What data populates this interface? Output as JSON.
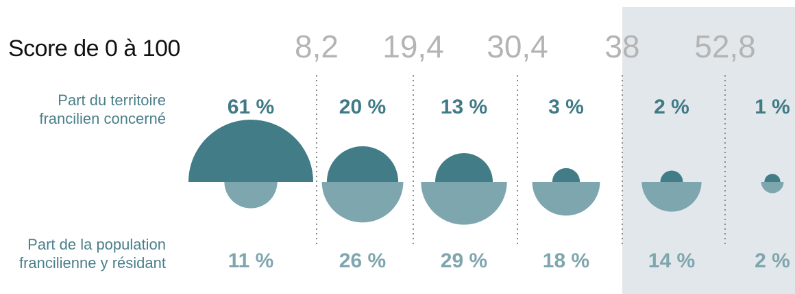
{
  "chart_data": {
    "type": "semicircle",
    "title": "Score de 0 à 100",
    "thresholds": [
      "8,2",
      "19,4",
      "30,4",
      "38",
      "52,8"
    ],
    "series": [
      {
        "name": "Part du territoire francilien concerné",
        "values": [
          61,
          20,
          13,
          3,
          2,
          1
        ],
        "labels": [
          "61 %",
          "20 %",
          "13 %",
          "3 %",
          "2 %",
          "1 %"
        ]
      },
      {
        "name": "Part de la population francilienne y résidant",
        "values": [
          11,
          26,
          29,
          18,
          14,
          2
        ],
        "labels": [
          "11 %",
          "26 %",
          "29 %",
          "18 %",
          "14 %",
          "2 %"
        ]
      }
    ],
    "highlighted_classes": [
      5,
      6
    ],
    "colors": {
      "territory": "#427c87",
      "population": "#7ea6ae",
      "highlight": "#e2e7eb",
      "ticks": "#b4b4b4"
    }
  },
  "labels": {
    "score": "Score de 0 à 100",
    "territory_line1": "Part du territoire",
    "territory_line2": "francilien concerné",
    "population_line1": "Part de la population",
    "population_line2": "francilienne y résidant"
  }
}
